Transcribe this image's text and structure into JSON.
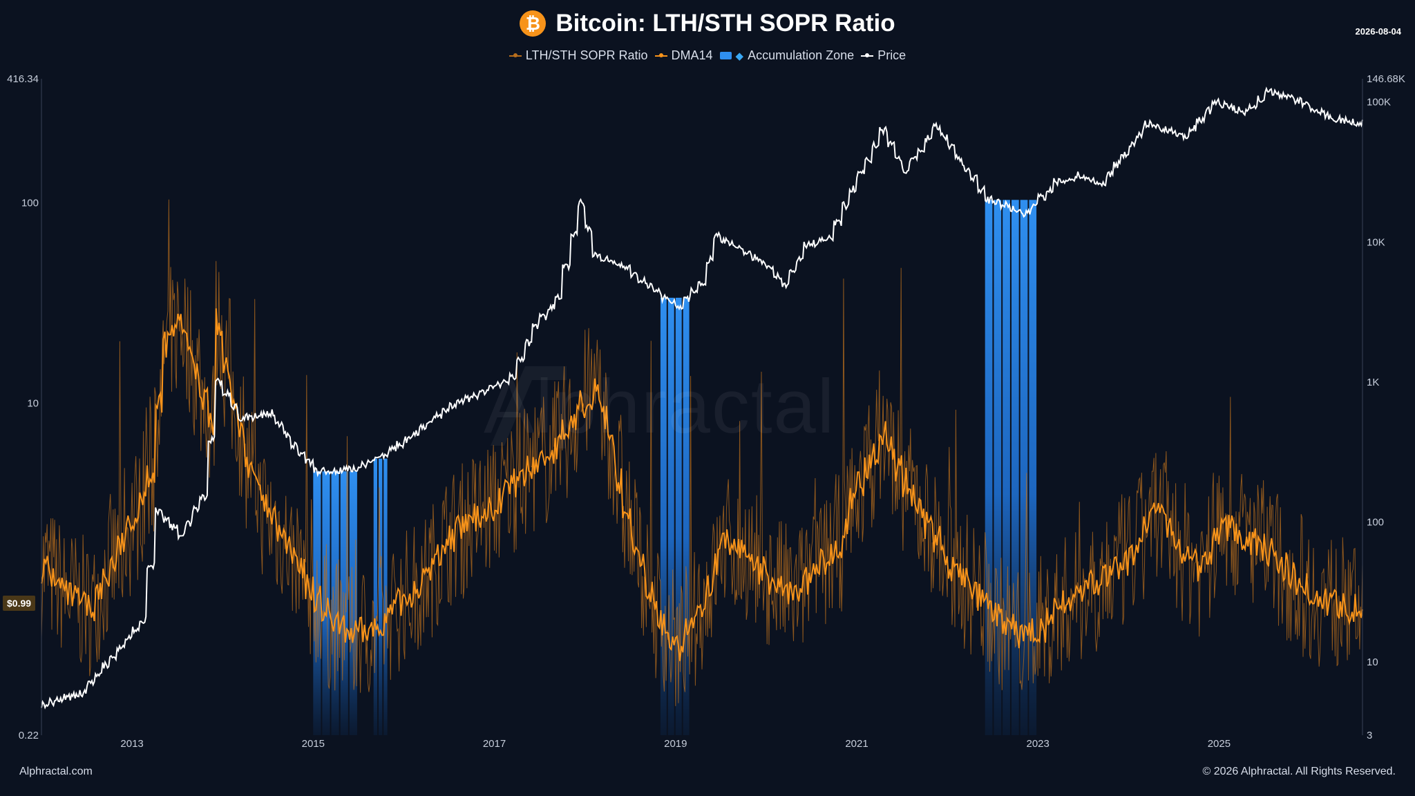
{
  "header": {
    "title": "Bitcoin: LTH/STH SOPR Ratio",
    "date": "2026-08-04",
    "icon": "bitcoin-icon",
    "icon_glyph": "₿"
  },
  "legend": {
    "items": [
      {
        "label": "LTH/STH SOPR Ratio",
        "color": "#b86e1c",
        "kind": "line"
      },
      {
        "label": "DMA14",
        "color": "#f7931a",
        "kind": "line"
      },
      {
        "label": "Accumulation Zone",
        "color": "#2f8ff0",
        "kind": "box"
      },
      {
        "label": "Price",
        "color": "#ffffff",
        "kind": "line"
      }
    ]
  },
  "price_tag": "$0.99",
  "watermark": "Alphractal",
  "footer": {
    "left": "Alphractal.com",
    "right": "© 2026 Alphractal. All Rights Reserved."
  },
  "colors": {
    "background": "#0b1220",
    "ratio": "#b86e1c",
    "dma": "#f7931a",
    "zone": "#2f8ff0",
    "price": "#ffffff"
  },
  "chart_data": {
    "type": "line",
    "title": "Bitcoin: LTH/STH SOPR Ratio",
    "x_ticks": [
      "2013",
      "2015",
      "2017",
      "2019",
      "2021",
      "2023",
      "2025"
    ],
    "xlim": [
      "2012-01",
      "2026-08"
    ],
    "left_axis": {
      "scale": "log",
      "ticks": [
        "0.22",
        "10",
        "100",
        "416.34"
      ],
      "range": [
        0.22,
        416.34
      ]
    },
    "right_axis": {
      "scale": "log",
      "ticks": [
        "3",
        "10",
        "100",
        "1K",
        "10K",
        "100K",
        "146.68K"
      ],
      "range": [
        3,
        146680
      ]
    },
    "grid": false,
    "legend_position": "top-center",
    "series": [
      {
        "name": "DMA14",
        "axis": "left",
        "points": [
          [
            "2012-01",
            1.5
          ],
          [
            "2012-04",
            1.1
          ],
          [
            "2012-07",
            0.95
          ],
          [
            "2012-10",
            1.6
          ],
          [
            "2013-01",
            2.8
          ],
          [
            "2013-03",
            4.5
          ],
          [
            "2013-05",
            20
          ],
          [
            "2013-07",
            25
          ],
          [
            "2013-09",
            15
          ],
          [
            "2013-11",
            8
          ],
          [
            "2013-12",
            25
          ],
          [
            "2014-02",
            10
          ],
          [
            "2014-04",
            5
          ],
          [
            "2014-06",
            3
          ],
          [
            "2014-09",
            2
          ],
          [
            "2014-12",
            1.2
          ],
          [
            "2015-03",
            0.8
          ],
          [
            "2015-06",
            0.7
          ],
          [
            "2015-09",
            0.75
          ],
          [
            "2015-12",
            1.0
          ],
          [
            "2016-03",
            1.3
          ],
          [
            "2016-06",
            2.0
          ],
          [
            "2016-09",
            2.5
          ],
          [
            "2016-12",
            3.0
          ],
          [
            "2017-03",
            4.0
          ],
          [
            "2017-06",
            5.0
          ],
          [
            "2017-09",
            6.0
          ],
          [
            "2017-12",
            10.0
          ],
          [
            "2018-02",
            12.0
          ],
          [
            "2018-04",
            6.0
          ],
          [
            "2018-07",
            2.0
          ],
          [
            "2018-10",
            0.9
          ],
          [
            "2019-01",
            0.6
          ],
          [
            "2019-04",
            1.0
          ],
          [
            "2019-07",
            2.0
          ],
          [
            "2019-10",
            1.8
          ],
          [
            "2020-01",
            1.3
          ],
          [
            "2020-04",
            1.1
          ],
          [
            "2020-07",
            1.4
          ],
          [
            "2020-10",
            2.0
          ],
          [
            "2021-01",
            4.0
          ],
          [
            "2021-04",
            7.0
          ],
          [
            "2021-07",
            4.0
          ],
          [
            "2021-10",
            2.5
          ],
          [
            "2022-01",
            1.5
          ],
          [
            "2022-04",
            1.2
          ],
          [
            "2022-07",
            0.85
          ],
          [
            "2022-10",
            0.7
          ],
          [
            "2023-01",
            0.75
          ],
          [
            "2023-04",
            1.0
          ],
          [
            "2023-07",
            1.2
          ],
          [
            "2023-10",
            1.4
          ],
          [
            "2024-01",
            1.7
          ],
          [
            "2024-04",
            3.0
          ],
          [
            "2024-07",
            2.0
          ],
          [
            "2024-10",
            1.5
          ],
          [
            "2025-01",
            2.5
          ],
          [
            "2025-04",
            2.2
          ],
          [
            "2025-07",
            1.8
          ],
          [
            "2025-10",
            1.4
          ],
          [
            "2026-01",
            1.1
          ],
          [
            "2026-04",
            1.0
          ],
          [
            "2026-06",
            0.95
          ],
          [
            "2026-08",
            1.05
          ]
        ]
      },
      {
        "name": "Price",
        "axis": "right",
        "points": [
          [
            "2012-01",
            5
          ],
          [
            "2012-06",
            6
          ],
          [
            "2012-10",
            11
          ],
          [
            "2013-02",
            20
          ],
          [
            "2013-04",
            120
          ],
          [
            "2013-07",
            80
          ],
          [
            "2013-10",
            150
          ],
          [
            "2013-12",
            1000
          ],
          [
            "2014-03",
            550
          ],
          [
            "2014-07",
            600
          ],
          [
            "2014-10",
            350
          ],
          [
            "2015-01",
            230
          ],
          [
            "2015-06",
            240
          ],
          [
            "2015-10",
            300
          ],
          [
            "2016-01",
            390
          ],
          [
            "2016-06",
            640
          ],
          [
            "2016-12",
            900
          ],
          [
            "2017-03",
            1100
          ],
          [
            "2017-06",
            2500
          ],
          [
            "2017-09",
            4000
          ],
          [
            "2017-12",
            19000
          ],
          [
            "2018-02",
            8000
          ],
          [
            "2018-06",
            6500
          ],
          [
            "2018-11",
            4000
          ],
          [
            "2019-01",
            3500
          ],
          [
            "2019-04",
            5000
          ],
          [
            "2019-06",
            11000
          ],
          [
            "2019-09",
            9000
          ],
          [
            "2019-12",
            7200
          ],
          [
            "2020-03",
            5000
          ],
          [
            "2020-06",
            9500
          ],
          [
            "2020-09",
            10500
          ],
          [
            "2020-12",
            24000
          ],
          [
            "2021-04",
            63000
          ],
          [
            "2021-07",
            32000
          ],
          [
            "2021-11",
            67000
          ],
          [
            "2022-02",
            40000
          ],
          [
            "2022-06",
            20000
          ],
          [
            "2022-11",
            16000
          ],
          [
            "2023-03",
            27000
          ],
          [
            "2023-06",
            30000
          ],
          [
            "2023-09",
            26000
          ],
          [
            "2023-12",
            42000
          ],
          [
            "2024-03",
            70000
          ],
          [
            "2024-08",
            57000
          ],
          [
            "2024-12",
            100000
          ],
          [
            "2025-04",
            84000
          ],
          [
            "2025-07",
            118000
          ],
          [
            "2025-10",
            110000
          ],
          [
            "2026-01",
            90000
          ],
          [
            "2026-04",
            75000
          ],
          [
            "2026-08",
            70000
          ]
        ]
      },
      {
        "name": "Accumulation Zone",
        "ranges": [
          [
            "2015-01",
            "2015-07"
          ],
          [
            "2015-09",
            "2015-11"
          ],
          [
            "2018-11",
            "2019-03"
          ],
          [
            "2022-06",
            "2023-01"
          ]
        ]
      }
    ]
  }
}
